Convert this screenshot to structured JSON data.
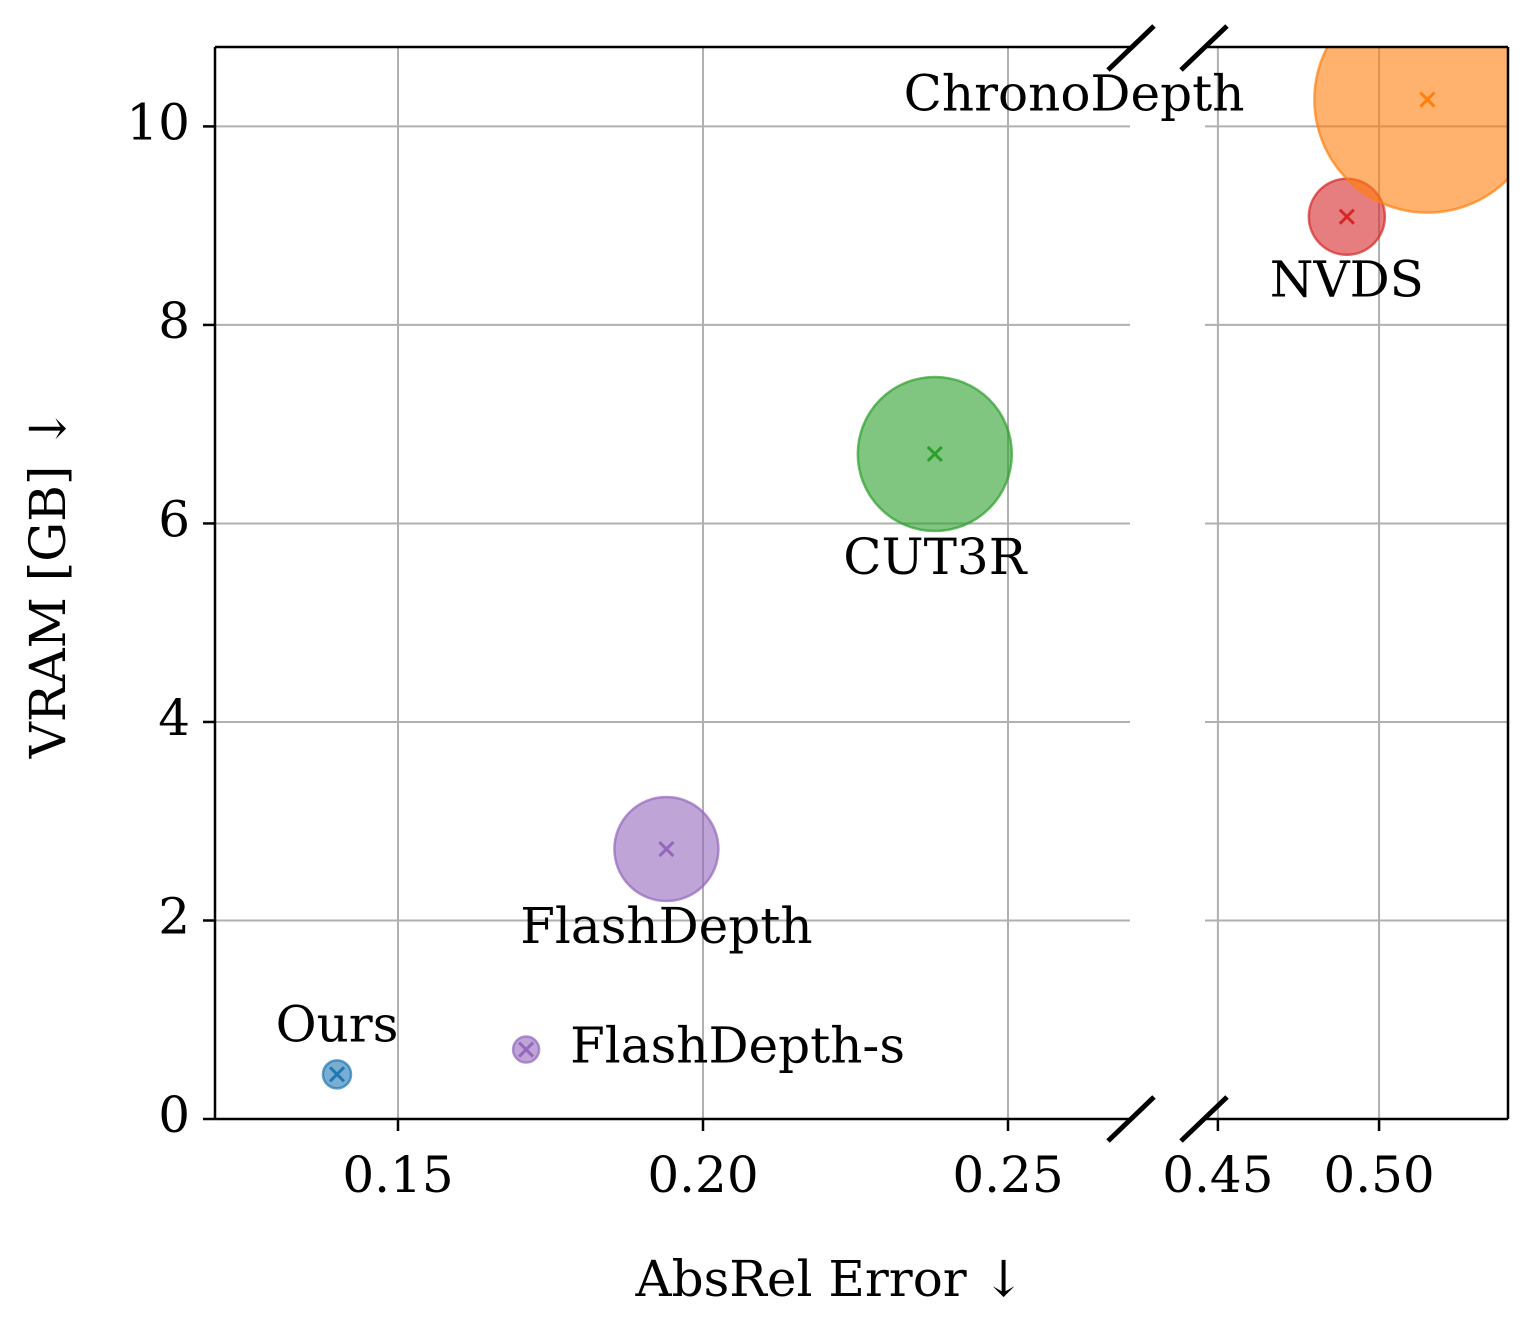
{
  "chart_data": {
    "type": "scatter",
    "xlabel": "AbsRel Error  ↓",
    "ylabel": "VRAM [GB] ↓",
    "ylim": [
      0,
      10.8
    ],
    "yticks": [
      0,
      2,
      4,
      6,
      8,
      10
    ],
    "grid": true,
    "panels": [
      {
        "xlim": [
          0.12,
          0.27
        ],
        "xticks": [
          0.15,
          {
            "value": 0.2,
            "label": "0.20"
          },
          0.25
        ]
      },
      {
        "xlim": [
          0.446,
          0.54
        ],
        "xticks": [
          0.45,
          {
            "value": 0.5,
            "label": "0.50"
          }
        ]
      }
    ],
    "series": [
      {
        "name": "Ours",
        "color": "#1f77b4",
        "x": [
          0.14
        ],
        "values": [
          0.45
        ],
        "sizes": [
          196
        ]
      },
      {
        "name": "FlashDepth-s",
        "color": "#9467bd",
        "x": [
          0.171
        ],
        "values": [
          0.7
        ],
        "sizes": [
          169
        ]
      },
      {
        "name": "FlashDepth",
        "color": "#9467bd",
        "x": [
          0.194
        ],
        "values": [
          2.72
        ],
        "sizes": [
          2704
        ]
      },
      {
        "name": "CUT3R",
        "color": "#2ca02c",
        "x": [
          0.238
        ],
        "values": [
          6.7
        ],
        "sizes": [
          5929
        ]
      },
      {
        "name": "NVDS",
        "color": "#d62728",
        "x": [
          0.49
        ],
        "values": [
          9.09
        ],
        "sizes": [
          1444
        ]
      },
      {
        "name": "ChronoDepth",
        "color": "#ff7f0e",
        "x": [
          0.515
        ],
        "values": [
          10.27
        ],
        "sizes": [
          12769
        ]
      }
    ]
  }
}
